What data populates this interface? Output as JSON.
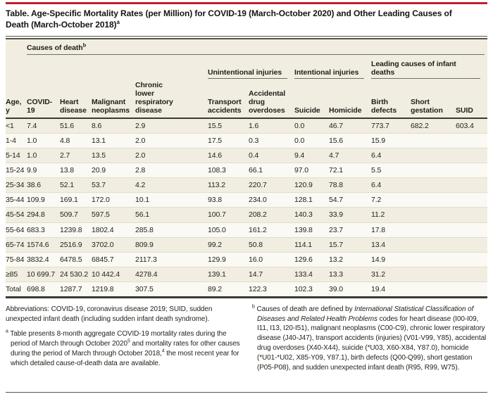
{
  "colors": {
    "accent_red": "#c41e2f"
  },
  "title": {
    "text": "Table. Age-Specific Mortality Rates (per Million) for COVID-19 (March-October 2020) and Other Leading Causes of Death (March-October 2018)",
    "marker": "a"
  },
  "table": {
    "causes_header": {
      "label": "Causes of death",
      "marker": "b"
    },
    "col_groups": [
      {
        "label": "Unintentional injuries",
        "span": 2
      },
      {
        "label": "Intentional injuries",
        "span": 2
      },
      {
        "label": "Leading causes of infant deaths",
        "span": 3
      }
    ],
    "group_spacer_span": 5,
    "columns": [
      "Age, y",
      "COVID-19",
      "Heart disease",
      "Malignant neoplasms",
      "Chronic lower respiratory disease",
      "Transport accidents",
      "Accidental drug overdoses",
      "Suicide",
      "Homicide",
      "Birth defects",
      "Short gestation",
      "SUID"
    ],
    "rows": [
      [
        "<1",
        "7.4",
        "51.6",
        "8.6",
        "2.9",
        "15.5",
        "1.6",
        "0.0",
        "46.7",
        "773.7",
        "682.2",
        "603.4"
      ],
      [
        "1-4",
        "1.0",
        "4.8",
        "13.1",
        "2.0",
        "17.5",
        "0.3",
        "0.0",
        "15.6",
        "15.9",
        "",
        ""
      ],
      [
        "5-14",
        "1.0",
        "2.7",
        "13.5",
        "2.0",
        "14.6",
        "0.4",
        "9.4",
        "4.7",
        "6.4",
        "",
        ""
      ],
      [
        "15-24",
        "9.9",
        "13.8",
        "20.9",
        "2.8",
        "108.3",
        "66.1",
        "97.0",
        "72.1",
        "5.5",
        "",
        ""
      ],
      [
        "25-34",
        "38.6",
        "52.1",
        "53.7",
        "4.2",
        "113.2",
        "220.7",
        "120.9",
        "78.8",
        "6.4",
        "",
        ""
      ],
      [
        "35-44",
        "109.9",
        "169.1",
        "172.0",
        "10.1",
        "93.8",
        "234.0",
        "128.1",
        "54.7",
        "7.2",
        "",
        ""
      ],
      [
        "45-54",
        "294.8",
        "509.7",
        "597.5",
        "56.1",
        "100.7",
        "208.2",
        "140.3",
        "33.9",
        "11.2",
        "",
        ""
      ],
      [
        "55-64",
        "683.3",
        "1239.8",
        "1802.4",
        "285.8",
        "105.0",
        "161.2",
        "139.8",
        "23.7",
        "17.8",
        "",
        ""
      ],
      [
        "65-74",
        "1574.6",
        "2516.9",
        "3702.0",
        "809.9",
        "99.2",
        "50.8",
        "114.1",
        "15.7",
        "13.4",
        "",
        ""
      ],
      [
        "75-84",
        "3832.4",
        "6478.5",
        "6845.7",
        "2117.3",
        "129.9",
        "16.0",
        "129.6",
        "13.2",
        "14.9",
        "",
        ""
      ],
      [
        "≥85",
        "10 699.7",
        "24 530.2",
        "10 442.4",
        "4278.4",
        "139.1",
        "14.7",
        "133.4",
        "13.3",
        "31.2",
        "",
        ""
      ],
      [
        "Total",
        "698.8",
        "1287.7",
        "1219.8",
        "307.5",
        "89.2",
        "122.3",
        "102.3",
        "39.0",
        "19.4",
        "",
        ""
      ]
    ]
  },
  "footnotes": {
    "abbreviations": "Abbreviations: COVID-19, coronavirus disease 2019; SUID, sudden unexpected infant death (including sudden infant death syndrome).",
    "a": {
      "marker": "a",
      "parts": [
        {
          "t": "Table presents 8-month aggregate COVID-19 mortality rates during the period of March through October 2020"
        },
        {
          "t": "5",
          "sup": true
        },
        {
          "t": " and mortality rates for other causes during the period of March through October 2018,"
        },
        {
          "t": "4",
          "sup": true
        },
        {
          "t": " the most recent year for which detailed cause-of-death data are available."
        }
      ]
    },
    "b": {
      "marker": "b",
      "parts": [
        {
          "t": "Causes of death are defined by "
        },
        {
          "t": "International Statistical Classification of Diseases and Related Health Problems",
          "italic": true
        },
        {
          "t": " codes for heart disease (I00-I09, I11, I13, I20-I51), malignant neoplasms (C00-C9), chronic lower respiratory disease (J40-J47), transport accidents (injuries) (V01-V99, Y85), accidental drug overdoses (X40-X44), suicide (*U03, X60-X84, Y87.0), homicide (*U01-*U02, X85-Y09, Y87.1), birth defects (Q00-Q99), short gestation (P05-P08), and sudden unexpected infant death (R95, R99, W75)."
        }
      ]
    }
  }
}
